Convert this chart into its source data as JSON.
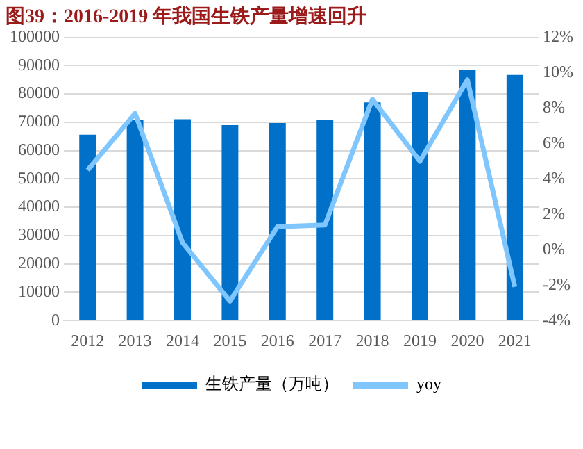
{
  "chart_data": {
    "type": "bar",
    "title": "图39：2016-2019 年我国生铁产量增速回升",
    "categories": [
      "2012",
      "2013",
      "2014",
      "2015",
      "2016",
      "2017",
      "2018",
      "2019",
      "2020",
      "2021"
    ],
    "series": [
      {
        "name": "生铁产量（万吨）",
        "color": "#0070c8",
        "values": [
          65600,
          70700,
          71100,
          69000,
          69700,
          70800,
          77000,
          80700,
          88600,
          86700
        ]
      },
      {
        "name": "yoy",
        "type": "line",
        "axis": "y2",
        "color": "#7fc6ff",
        "marker": "none",
        "values": [
          4.5,
          7.7,
          0.4,
          -2.9,
          1.3,
          1.4,
          8.5,
          5.0,
          9.6,
          -2.1
        ]
      }
    ],
    "ylim": [
      0,
      100000
    ],
    "yticks": [
      0,
      10000,
      20000,
      30000,
      40000,
      50000,
      60000,
      70000,
      80000,
      90000,
      100000
    ],
    "y2lim": [
      -4,
      12
    ],
    "y2ticks": [
      {
        "value": -4,
        "label": "-4%"
      },
      {
        "value": -2,
        "label": "-2%"
      },
      {
        "value": 0,
        "label": "0%"
      },
      {
        "value": 2,
        "label": "2%"
      },
      {
        "value": 4,
        "label": "4%"
      },
      {
        "value": 6,
        "label": "6%"
      },
      {
        "value": 8,
        "label": "8%"
      },
      {
        "value": 10,
        "label": "10%"
      },
      {
        "value": 12,
        "label": "12%"
      }
    ],
    "grid": "y",
    "legend": "bottom"
  }
}
